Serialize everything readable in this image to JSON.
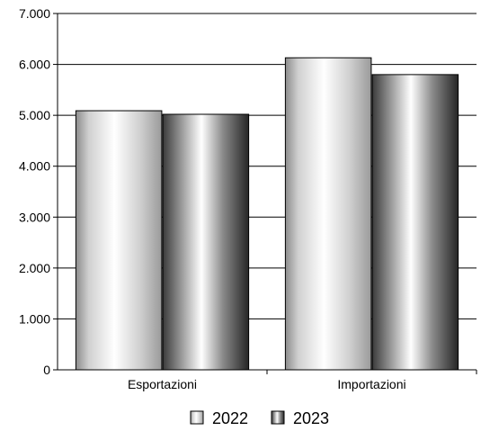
{
  "chart_data": {
    "type": "bar",
    "categories": [
      "Esportazioni",
      "Importazioni"
    ],
    "series": [
      {
        "name": "2022",
        "values": [
          5090,
          6130
        ]
      },
      {
        "name": "2023",
        "values": [
          5020,
          5800
        ]
      }
    ],
    "ylim": [
      0,
      7000
    ],
    "yticks": [
      "0",
      "1.000",
      "2.000",
      "3.000",
      "4.000",
      "5.000",
      "6.000",
      "7.000"
    ],
    "grid": true,
    "legend_position": "bottom"
  }
}
